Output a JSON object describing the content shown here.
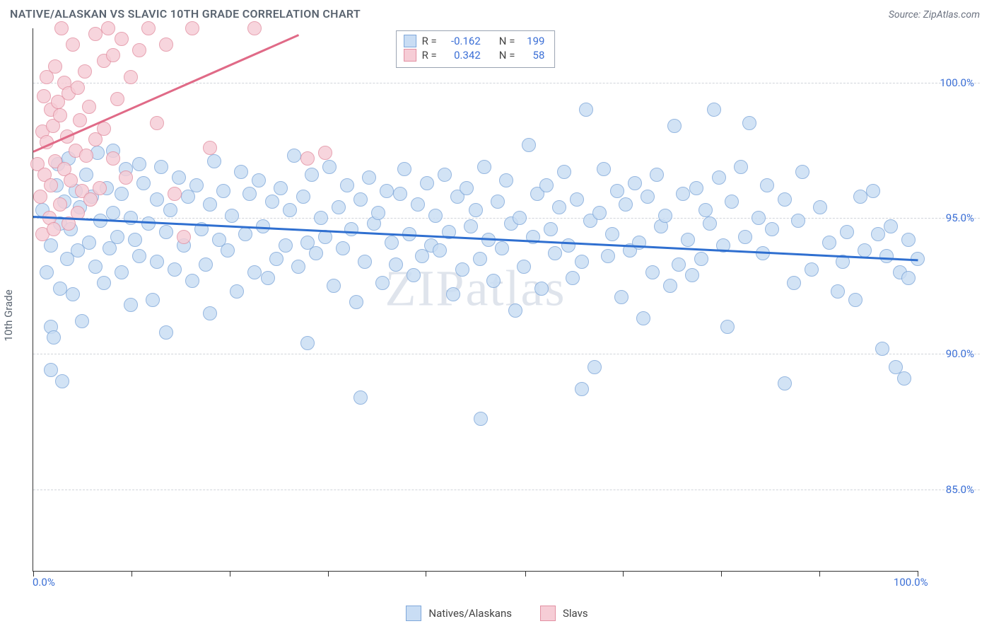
{
  "header": {
    "title": "NATIVE/ALASKAN VS SLAVIC 10TH GRADE CORRELATION CHART",
    "source_prefix": "Source: ",
    "source_name": "ZipAtlas.com"
  },
  "chart": {
    "type": "scatter",
    "watermark": "ZIPatlas",
    "y_axis_title": "10th Grade",
    "x_range": [
      0,
      100
    ],
    "y_range": [
      82,
      102
    ],
    "y_ticks": [
      85.0,
      90.0,
      95.0,
      100.0
    ],
    "y_tick_labels": [
      "85.0%",
      "90.0%",
      "95.0%",
      "100.0%"
    ],
    "x_ticks": [
      0,
      11.1,
      22.2,
      33.3,
      44.4,
      55.6,
      66.7,
      77.8,
      88.9,
      100
    ],
    "x_min_label": "0.0%",
    "x_max_label": "100.0%",
    "grid_color": "#d0d4da",
    "axis_color": "#333333",
    "background_color": "#ffffff",
    "marker_radius": 10,
    "marker_border_width": 1.2,
    "series": [
      {
        "key": "natives",
        "label": "Natives/Alaskans",
        "fill": "#c9ddf4",
        "stroke": "#7fa8da",
        "R": "-0.162",
        "N": "199",
        "trend": {
          "x1": 0,
          "y1": 95.1,
          "x2": 100,
          "y2": 93.5,
          "color": "#2f6fd0",
          "width": 2.5
        },
        "points": [
          [
            1,
            95.3
          ],
          [
            1.5,
            93.0
          ],
          [
            2,
            91.0
          ],
          [
            2,
            89.4
          ],
          [
            2,
            94.0
          ],
          [
            2.3,
            90.6
          ],
          [
            2.6,
            96.2
          ],
          [
            2.8,
            97.0
          ],
          [
            3,
            94.8
          ],
          [
            3,
            92.4
          ],
          [
            3.3,
            89.0
          ],
          [
            3.5,
            95.6
          ],
          [
            3.8,
            93.5
          ],
          [
            4,
            97.2
          ],
          [
            4.2,
            94.6
          ],
          [
            4.5,
            92.2
          ],
          [
            4.8,
            96.0
          ],
          [
            5,
            93.8
          ],
          [
            5.3,
            95.4
          ],
          [
            5.5,
            91.2
          ],
          [
            6,
            96.6
          ],
          [
            6.3,
            94.1
          ],
          [
            6.6,
            95.8
          ],
          [
            7,
            93.2
          ],
          [
            7.3,
            97.4
          ],
          [
            7.6,
            94.9
          ],
          [
            8,
            92.6
          ],
          [
            8.3,
            96.1
          ],
          [
            8.6,
            93.9
          ],
          [
            9,
            95.2
          ],
          [
            9,
            97.5
          ],
          [
            9.5,
            94.3
          ],
          [
            10,
            95.9
          ],
          [
            10,
            93.0
          ],
          [
            10.5,
            96.8
          ],
          [
            11,
            91.8
          ],
          [
            11,
            95.0
          ],
          [
            11.5,
            94.2
          ],
          [
            12,
            97.0
          ],
          [
            12,
            93.6
          ],
          [
            12.5,
            96.3
          ],
          [
            13,
            94.8
          ],
          [
            13.5,
            92.0
          ],
          [
            14,
            95.7
          ],
          [
            14,
            93.4
          ],
          [
            14.5,
            96.9
          ],
          [
            15,
            94.5
          ],
          [
            15,
            90.8
          ],
          [
            15.5,
            95.3
          ],
          [
            16,
            93.1
          ],
          [
            16.5,
            96.5
          ],
          [
            17,
            94.0
          ],
          [
            17.5,
            95.8
          ],
          [
            18,
            92.7
          ],
          [
            18.5,
            96.2
          ],
          [
            19,
            94.6
          ],
          [
            19.5,
            93.3
          ],
          [
            20,
            95.5
          ],
          [
            20,
            91.5
          ],
          [
            20.5,
            97.1
          ],
          [
            21,
            94.2
          ],
          [
            21.5,
            96.0
          ],
          [
            22,
            93.8
          ],
          [
            22.5,
            95.1
          ],
          [
            23,
            92.3
          ],
          [
            23.5,
            96.7
          ],
          [
            24,
            94.4
          ],
          [
            24.5,
            95.9
          ],
          [
            25,
            93.0
          ],
          [
            25.5,
            96.4
          ],
          [
            26,
            94.7
          ],
          [
            26.5,
            92.8
          ],
          [
            27,
            95.6
          ],
          [
            27.5,
            93.5
          ],
          [
            28,
            96.1
          ],
          [
            28.5,
            94.0
          ],
          [
            29,
            95.3
          ],
          [
            29.5,
            97.3
          ],
          [
            30,
            93.2
          ],
          [
            30.5,
            95.8
          ],
          [
            31,
            94.1
          ],
          [
            31,
            90.4
          ],
          [
            31.5,
            96.6
          ],
          [
            32,
            93.7
          ],
          [
            32.5,
            95.0
          ],
          [
            33,
            94.3
          ],
          [
            33.5,
            96.9
          ],
          [
            34,
            92.5
          ],
          [
            34.5,
            95.4
          ],
          [
            35,
            93.9
          ],
          [
            35.5,
            96.2
          ],
          [
            36,
            94.6
          ],
          [
            36.5,
            91.9
          ],
          [
            37,
            95.7
          ],
          [
            37,
            88.4
          ],
          [
            37.5,
            93.4
          ],
          [
            38,
            96.5
          ],
          [
            38.5,
            94.8
          ],
          [
            39,
            95.2
          ],
          [
            39.5,
            92.6
          ],
          [
            40,
            96.0
          ],
          [
            40.5,
            94.1
          ],
          [
            41,
            93.3
          ],
          [
            41.5,
            95.9
          ],
          [
            42,
            96.8
          ],
          [
            42.5,
            94.4
          ],
          [
            43,
            92.9
          ],
          [
            43.5,
            95.5
          ],
          [
            44,
            93.6
          ],
          [
            44.5,
            96.3
          ],
          [
            45,
            94.0
          ],
          [
            45.5,
            95.1
          ],
          [
            46,
            93.8
          ],
          [
            46.5,
            96.6
          ],
          [
            47,
            94.5
          ],
          [
            47.5,
            92.2
          ],
          [
            48,
            95.8
          ],
          [
            48.5,
            93.1
          ],
          [
            49,
            96.1
          ],
          [
            49.5,
            94.7
          ],
          [
            50,
            95.3
          ],
          [
            50.5,
            93.5
          ],
          [
            50.6,
            87.6
          ],
          [
            51,
            96.9
          ],
          [
            51.5,
            94.2
          ],
          [
            52,
            92.7
          ],
          [
            52.5,
            95.6
          ],
          [
            53,
            93.9
          ],
          [
            53.5,
            96.4
          ],
          [
            54,
            94.8
          ],
          [
            54.5,
            91.6
          ],
          [
            55,
            95.0
          ],
          [
            55.5,
            93.2
          ],
          [
            56,
            97.7
          ],
          [
            56.5,
            94.3
          ],
          [
            57,
            95.9
          ],
          [
            57.5,
            92.4
          ],
          [
            58,
            96.2
          ],
          [
            58.5,
            94.6
          ],
          [
            59,
            93.7
          ],
          [
            59.5,
            95.4
          ],
          [
            60,
            96.7
          ],
          [
            60.5,
            94.0
          ],
          [
            61,
            92.8
          ],
          [
            61.5,
            95.7
          ],
          [
            62,
            93.4
          ],
          [
            62,
            88.7
          ],
          [
            62.5,
            99.0
          ],
          [
            63,
            94.9
          ],
          [
            63.5,
            89.5
          ],
          [
            64,
            95.2
          ],
          [
            64.5,
            96.8
          ],
          [
            65,
            93.6
          ],
          [
            65.5,
            94.4
          ],
          [
            66,
            96.0
          ],
          [
            66.5,
            92.1
          ],
          [
            67,
            95.5
          ],
          [
            67.5,
            93.8
          ],
          [
            68,
            96.3
          ],
          [
            68.5,
            94.1
          ],
          [
            69,
            91.3
          ],
          [
            69.5,
            95.8
          ],
          [
            70,
            93.0
          ],
          [
            70.5,
            96.6
          ],
          [
            71,
            94.7
          ],
          [
            71.5,
            95.1
          ],
          [
            72,
            92.5
          ],
          [
            72.5,
            98.4
          ],
          [
            73,
            93.3
          ],
          [
            73.5,
            95.9
          ],
          [
            74,
            94.2
          ],
          [
            74.5,
            92.9
          ],
          [
            75,
            96.1
          ],
          [
            75.5,
            93.5
          ],
          [
            76,
            95.3
          ],
          [
            76.5,
            94.8
          ],
          [
            77,
            99.0
          ],
          [
            77.5,
            96.5
          ],
          [
            78,
            94.0
          ],
          [
            78.5,
            91.0
          ],
          [
            79,
            95.6
          ],
          [
            80,
            96.9
          ],
          [
            80.5,
            94.3
          ],
          [
            81,
            98.5
          ],
          [
            82,
            95.0
          ],
          [
            82.5,
            93.7
          ],
          [
            83,
            96.2
          ],
          [
            83.5,
            94.6
          ],
          [
            85,
            88.9
          ],
          [
            85,
            95.7
          ],
          [
            86,
            92.6
          ],
          [
            86.5,
            94.9
          ],
          [
            87,
            96.7
          ],
          [
            88,
            93.1
          ],
          [
            89,
            95.4
          ],
          [
            90,
            94.1
          ],
          [
            91,
            92.3
          ],
          [
            91.5,
            93.4
          ],
          [
            92,
            94.5
          ],
          [
            93,
            92.0
          ],
          [
            93.5,
            95.8
          ],
          [
            94,
            93.8
          ],
          [
            95,
            96.0
          ],
          [
            95.5,
            94.4
          ],
          [
            96,
            90.2
          ],
          [
            96.5,
            93.6
          ],
          [
            97,
            94.7
          ],
          [
            97.5,
            89.5
          ],
          [
            98,
            93.0
          ],
          [
            98.5,
            89.1
          ],
          [
            99,
            92.8
          ],
          [
            99,
            94.2
          ],
          [
            100,
            93.5
          ]
        ]
      },
      {
        "key": "slavs",
        "label": "Slavs",
        "fill": "#f6cdd6",
        "stroke": "#e290a2",
        "R": "0.342",
        "N": "58",
        "trend": {
          "x1": 0,
          "y1": 97.5,
          "x2": 30,
          "y2": 101.8,
          "color": "#e06a87",
          "width": 2.5
        },
        "points": [
          [
            0.5,
            97.0
          ],
          [
            0.8,
            95.8
          ],
          [
            1,
            98.2
          ],
          [
            1,
            94.4
          ],
          [
            1.2,
            99.5
          ],
          [
            1.3,
            96.6
          ],
          [
            1.5,
            100.2
          ],
          [
            1.5,
            97.8
          ],
          [
            1.8,
            95.0
          ],
          [
            2,
            99.0
          ],
          [
            2,
            96.2
          ],
          [
            2.2,
            98.4
          ],
          [
            2.3,
            94.6
          ],
          [
            2.5,
            100.6
          ],
          [
            2.5,
            97.1
          ],
          [
            2.8,
            99.3
          ],
          [
            3,
            95.5
          ],
          [
            3,
            98.8
          ],
          [
            3.2,
            102.0
          ],
          [
            3.5,
            96.8
          ],
          [
            3.5,
            100.0
          ],
          [
            3.8,
            98.0
          ],
          [
            4,
            94.8
          ],
          [
            4,
            99.6
          ],
          [
            4.2,
            96.4
          ],
          [
            4.5,
            101.4
          ],
          [
            4.8,
            97.5
          ],
          [
            5,
            99.8
          ],
          [
            5,
            95.2
          ],
          [
            5.3,
            98.6
          ],
          [
            5.5,
            96.0
          ],
          [
            5.8,
            100.4
          ],
          [
            6,
            97.3
          ],
          [
            6.3,
            99.1
          ],
          [
            6.5,
            95.7
          ],
          [
            7,
            101.8
          ],
          [
            7,
            97.9
          ],
          [
            7.5,
            96.1
          ],
          [
            8,
            100.8
          ],
          [
            8,
            98.3
          ],
          [
            8.5,
            102.0
          ],
          [
            9,
            101.0
          ],
          [
            9,
            97.2
          ],
          [
            9.5,
            99.4
          ],
          [
            10,
            101.6
          ],
          [
            10.5,
            96.5
          ],
          [
            11,
            100.2
          ],
          [
            12,
            101.2
          ],
          [
            13,
            102.0
          ],
          [
            14,
            98.5
          ],
          [
            15,
            101.4
          ],
          [
            16,
            95.9
          ],
          [
            17,
            94.3
          ],
          [
            18,
            102.0
          ],
          [
            20,
            97.6
          ],
          [
            25,
            102.0
          ],
          [
            31,
            97.2
          ],
          [
            33,
            97.4
          ]
        ]
      }
    ],
    "stat_labels": {
      "R": "R =",
      "N": "N ="
    },
    "legend_swatch_size": 22
  },
  "colors": {
    "title": "#5a6470",
    "source": "#6b7280",
    "tick_label": "#3b6fd6"
  }
}
